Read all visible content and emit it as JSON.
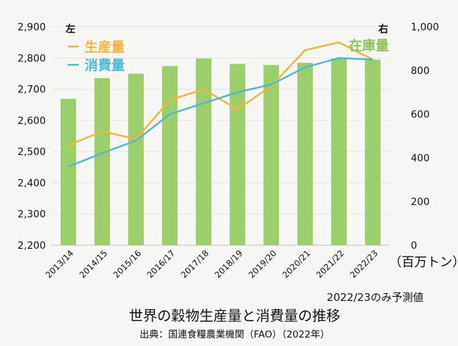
{
  "chart_data": {
    "type": "bar",
    "title": "世界の穀物生産量と消費量の推移",
    "source": "出典：国連食糧農業機関（FAO）（2022年）",
    "note": "2022/23のみ予測値",
    "unit_label": "（百万トン）",
    "left_axis_label": "左",
    "right_axis_label": "右",
    "categories": [
      "2013/14",
      "2014/15",
      "2015/16",
      "2016/17",
      "2017/18",
      "2018/19",
      "2019/20",
      "2020/21",
      "2021/22",
      "2022/23"
    ],
    "left_axis": {
      "min": 2200,
      "max": 2900,
      "ticks": [
        "2,200",
        "2,300",
        "2,400",
        "2,500",
        "2,600",
        "2,700",
        "2,800",
        "2,900"
      ]
    },
    "right_axis": {
      "min": 0,
      "max": 1000,
      "ticks": [
        "0",
        "200",
        "400",
        "600",
        "800",
        "1,000"
      ]
    },
    "grid": true,
    "series": [
      {
        "name": "在庫量",
        "kind": "bar",
        "axis": "right",
        "color": "#9ccf6b",
        "values": [
          670,
          765,
          785,
          820,
          855,
          830,
          825,
          835,
          855,
          850
        ]
      },
      {
        "name": "生産量",
        "kind": "line",
        "axis": "left",
        "color": "#f3b53b",
        "values": [
          2520,
          2565,
          2540,
          2665,
          2700,
          2635,
          2710,
          2825,
          2850,
          2795
        ]
      },
      {
        "name": "消費量",
        "kind": "line",
        "axis": "left",
        "color": "#4cb8da",
        "values": [
          2452,
          2495,
          2535,
          2620,
          2655,
          2690,
          2715,
          2770,
          2800,
          2795
        ]
      }
    ]
  }
}
